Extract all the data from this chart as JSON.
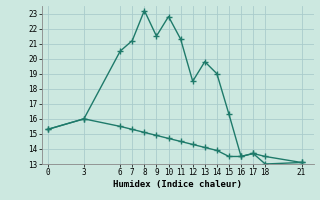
{
  "xlabel": "Humidex (Indice chaleur)",
  "line1_x": [
    0,
    3,
    6,
    7,
    8,
    9,
    10,
    11,
    12,
    13,
    14,
    15,
    16,
    17,
    18,
    21
  ],
  "line1_y": [
    15.3,
    16.0,
    20.5,
    21.2,
    23.2,
    21.5,
    22.8,
    21.3,
    18.5,
    19.8,
    19.0,
    16.3,
    13.5,
    13.7,
    13.0,
    13.1
  ],
  "line2_x": [
    0,
    3,
    6,
    7,
    8,
    9,
    10,
    11,
    12,
    13,
    14,
    15,
    16,
    17,
    18,
    21
  ],
  "line2_y": [
    15.3,
    16.0,
    15.5,
    15.3,
    15.1,
    14.9,
    14.7,
    14.5,
    14.3,
    14.1,
    13.9,
    13.5,
    13.5,
    13.7,
    13.5,
    13.1
  ],
  "line_color": "#1e7a6a",
  "bg_color": "#cce8e0",
  "grid_color": "#aacccc",
  "ylim": [
    13,
    23.5
  ],
  "xlim": [
    -0.5,
    22
  ],
  "yticks": [
    13,
    14,
    15,
    16,
    17,
    18,
    19,
    20,
    21,
    22,
    23
  ],
  "xticks": [
    0,
    3,
    6,
    7,
    8,
    9,
    10,
    11,
    12,
    13,
    14,
    15,
    16,
    17,
    18,
    21
  ],
  "marker": "+",
  "markersize": 4,
  "linewidth": 1.0
}
